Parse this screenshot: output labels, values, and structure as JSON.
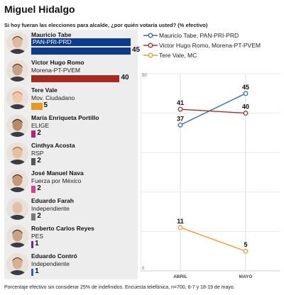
{
  "title": "Miguel Hidalgo",
  "subtitle": "Si hoy fueran las elecciones para alcalde, ¿por quién votaría usted? (% efectivo)",
  "footer": "Porcentaje efectivo sin considerar 25% de indefinidos. Encuesta telefónica, n=700, 6-7 y 18-19 de mayo.",
  "candidates": [
    {
      "name": "Mauricio Tabe",
      "party": "PAN-PRI-PRD",
      "value": 45,
      "color": "#0d3c8c",
      "value_label": "45",
      "party_box": true
    },
    {
      "name": "Víctor Hugo Romo",
      "party": "Morena-PT-PVEM",
      "value": 40,
      "color": "#a42b22",
      "value_label": "40",
      "party_box": false
    },
    {
      "name": "Tere Vale",
      "party": "Mov. Ciudadano",
      "value": 5,
      "color": "#e69a1e",
      "value_label": "5",
      "party_box": false
    },
    {
      "name": "María Enriqueta Portillo",
      "party": "ELIGE",
      "value": 2,
      "color": "#b0227a",
      "value_label": "2",
      "party_box": false
    },
    {
      "name": "Cinthya Acosta",
      "party": "RSP",
      "value": 2,
      "color": "#555555",
      "value_label": "2",
      "party_box": false
    },
    {
      "name": "José Manuel Nava",
      "party": "Fuerza por México",
      "value": 2,
      "color": "#d6408f",
      "value_label": "2",
      "party_box": false
    },
    {
      "name": "Eduardo Farah",
      "party": "Independiente",
      "value": 2,
      "color": "#777777",
      "value_label": "2",
      "party_box": false
    },
    {
      "name": "Roberto Carlos Reyes",
      "party": "PES",
      "value": 1,
      "color": "#6b2a8c",
      "value_label": "1",
      "party_box": false
    },
    {
      "name": "Eduardo Contró",
      "party": "Independiente",
      "value": 1,
      "color": "#3a5fa8",
      "value_label": "1",
      "party_box": false
    }
  ],
  "chart_data": {
    "type": "line",
    "x": [
      "ABRIL",
      "MAYO"
    ],
    "ylim": [
      0,
      50
    ],
    "yticks": [
      "0",
      "50"
    ],
    "series": [
      {
        "name": "Mauricio Tabe, PAN-PRI-PRD",
        "values": [
          37,
          45
        ],
        "labels": [
          "37",
          "45"
        ],
        "color": "#2f6db5"
      },
      {
        "name": "Victor Hugo Romo, Morena-PT-PVEM",
        "values": [
          41,
          40
        ],
        "labels": [
          "41",
          "40"
        ],
        "color": "#a0342a"
      },
      {
        "name": "Tere Vale, MC",
        "values": [
          11,
          5
        ],
        "labels": [
          "11",
          "5"
        ],
        "color": "#e8a233"
      }
    ],
    "bar_chart": {
      "type": "bar",
      "categories": [
        "Mauricio Tabe",
        "Víctor Hugo Romo",
        "Tere Vale",
        "María Enriqueta Portillo",
        "Cinthya Acosta",
        "José Manuel Nava",
        "Eduardo Farah",
        "Roberto Carlos Reyes",
        "Eduardo Contró"
      ],
      "values": [
        45,
        40,
        5,
        2,
        2,
        2,
        2,
        1,
        1
      ]
    }
  }
}
